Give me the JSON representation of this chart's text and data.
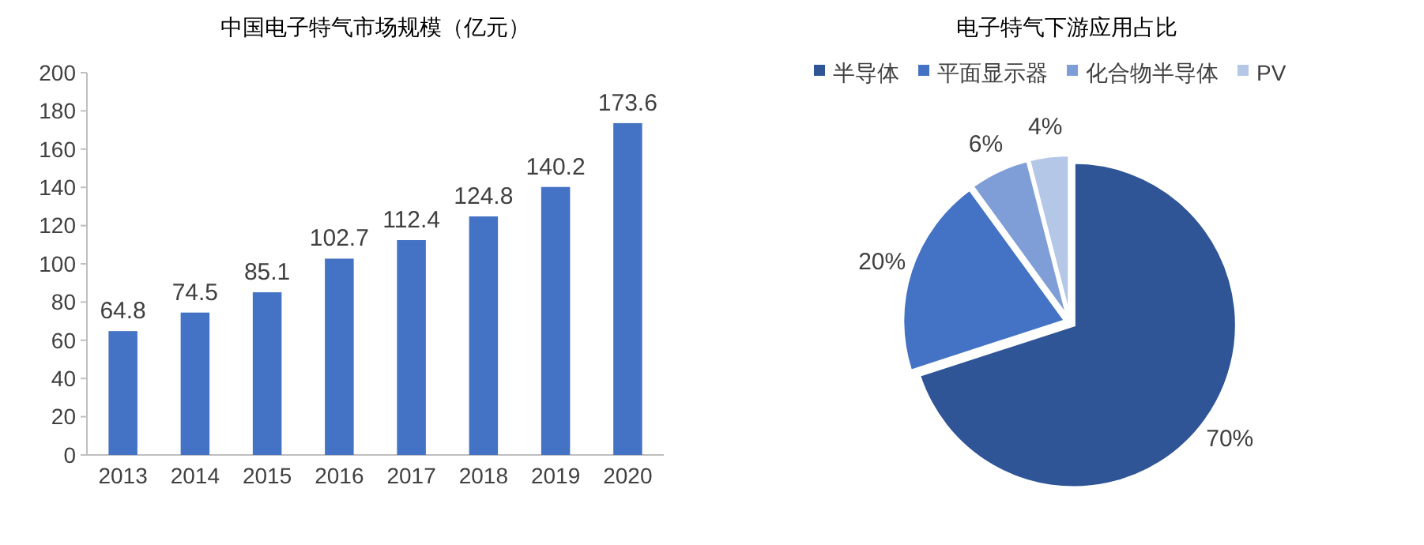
{
  "chart_data": [
    {
      "type": "bar",
      "title": "中国电子特气市场规模（亿元）",
      "categories": [
        "2013",
        "2014",
        "2015",
        "2016",
        "2017",
        "2018",
        "2019",
        "2020"
      ],
      "values": [
        64.8,
        74.5,
        85.1,
        102.7,
        112.4,
        124.8,
        140.2,
        173.6
      ],
      "color": "#4472c4",
      "ylim": [
        0,
        200
      ],
      "yticks": [
        0,
        20,
        40,
        60,
        80,
        100,
        120,
        140,
        160,
        180,
        200
      ],
      "data_labels": true
    },
    {
      "type": "pie",
      "title": "电子特气下游应用占比",
      "categories": [
        "半导体",
        "平面显示器",
        "化合物半导体",
        "PV"
      ],
      "values": [
        70,
        20,
        6,
        4
      ],
      "value_labels": [
        "70%",
        "20%",
        "6%",
        "4%"
      ],
      "colors": [
        "#2f5597",
        "#4472c4",
        "#7f9dd6",
        "#b4c7e7"
      ],
      "legend": "top"
    }
  ]
}
